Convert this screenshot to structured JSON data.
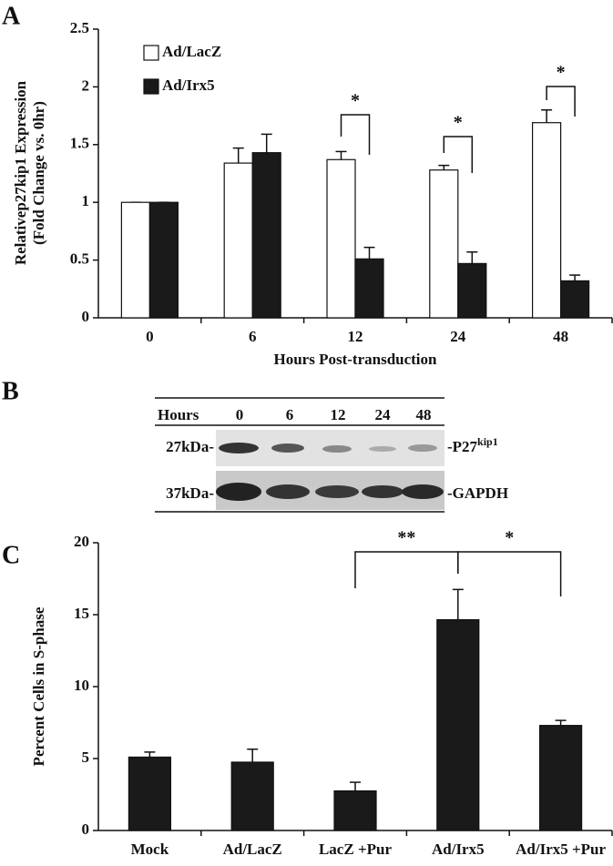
{
  "panel_labels": [
    "A",
    "B",
    "C"
  ],
  "chart_data": [
    {
      "type": "bar",
      "ylabel": [
        "Relativep27kip1 Expression",
        "(Fold Change vs. 0hr)"
      ],
      "xlabel": "Hours Post-transduction",
      "categories": [
        "0",
        "6",
        "12",
        "24",
        "48"
      ],
      "series": [
        {
          "name": "Ad/LacZ",
          "color": "#ffffff",
          "values": [
            1,
            1.34,
            1.37,
            1.28,
            1.69
          ],
          "errors": [
            0,
            0.13,
            0.07,
            0.04,
            0.11
          ]
        },
        {
          "name": "Ad/Irx5",
          "color": "#1a1a1a",
          "values": [
            1,
            1.43,
            0.51,
            0.47,
            0.32
          ],
          "errors": [
            0,
            0.16,
            0.1,
            0.1,
            0.05
          ]
        }
      ],
      "ylim": [
        0,
        2.5
      ],
      "yticks": [
        0,
        0.5,
        1,
        1.5,
        2,
        2.5
      ],
      "annotations": [
        "*",
        "*",
        "*"
      ],
      "legend": "upper left"
    },
    {
      "type": "bar",
      "ylabel": [
        "Percent Cells in S-phase"
      ],
      "categories": [
        "Mock",
        "Ad/LacZ",
        "LacZ +Pur",
        "Ad/Irx5",
        "Ad/Irx5 +Pur"
      ],
      "values": [
        5.1,
        4.75,
        2.75,
        14.65,
        7.3
      ],
      "errors": [
        0.35,
        0.9,
        0.6,
        2.1,
        0.35
      ],
      "color": "#1a1a1a",
      "ylim": [
        0,
        20
      ],
      "yticks": [
        0,
        5,
        10,
        15,
        20
      ],
      "annotations": [
        "**",
        "*"
      ]
    }
  ],
  "blot": {
    "header": "Hours",
    "lanes": [
      "0",
      "6",
      "12",
      "24",
      "48"
    ],
    "sizes": [
      "27kDa-",
      "37kDa-"
    ],
    "proteins": [
      {
        "text": "-P27",
        "superscript": "kip1"
      },
      {
        "text": "-GAPDH"
      }
    ]
  }
}
